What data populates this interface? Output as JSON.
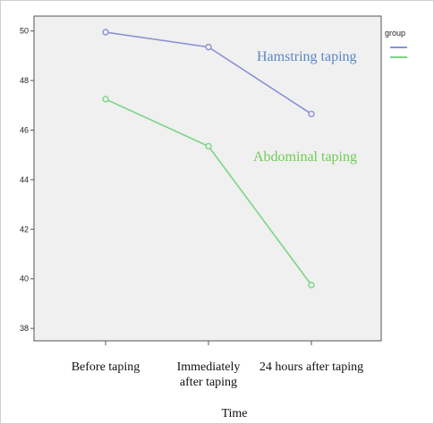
{
  "chart_data": {
    "type": "line",
    "categories": [
      "Before taping",
      "Immediately\nafter taping",
      "24 hours after taping"
    ],
    "xlabel": "Time",
    "ylabel": "",
    "ylim": [
      37.5,
      50.6
    ],
    "yticks": [
      38,
      40,
      42,
      44,
      46,
      48,
      50
    ],
    "grid": false,
    "legend": {
      "title": "group",
      "placement": "top-right"
    },
    "series": [
      {
        "name": "Hamstring taping",
        "values": [
          49.95,
          49.35,
          46.65
        ],
        "color": "#8a91d6"
      },
      {
        "name": "Abdominal taping",
        "values": [
          47.25,
          45.35,
          39.75
        ],
        "color": "#7bd585"
      }
    ]
  },
  "colors": {
    "plot_background": "#f0f0f0",
    "hamstring_label": "#5b87c5",
    "abdominal_label": "#6ecb55"
  }
}
